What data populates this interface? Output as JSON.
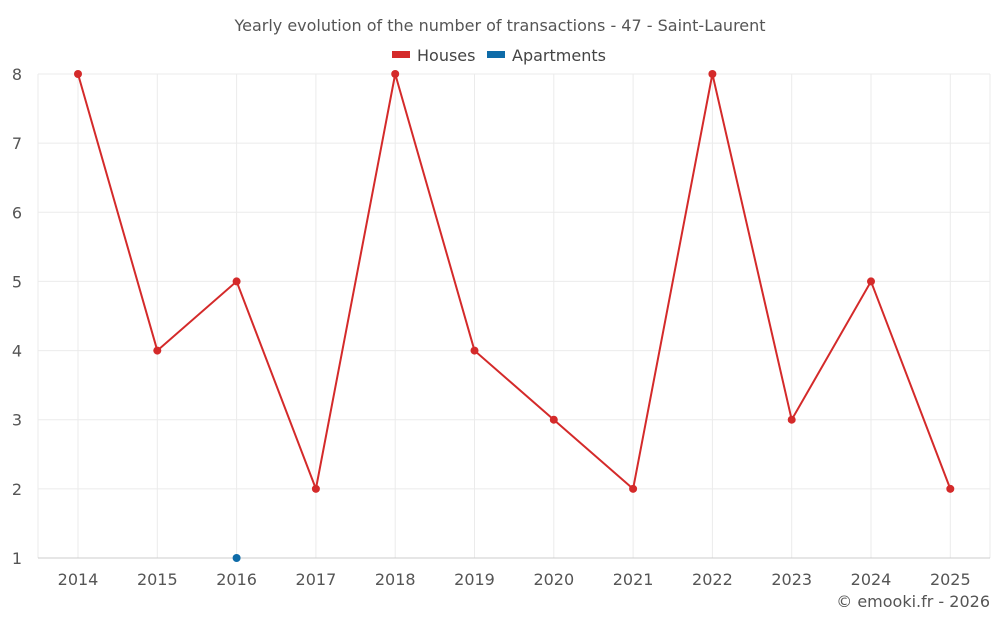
{
  "chart_data": {
    "type": "line",
    "title": "Yearly evolution of the number of transactions - 47 - Saint-Laurent",
    "categories": [
      "2014",
      "2015",
      "2016",
      "2017",
      "2018",
      "2019",
      "2020",
      "2021",
      "2022",
      "2023",
      "2024",
      "2025"
    ],
    "series": [
      {
        "name": "Houses",
        "color": "#d42a2a",
        "values": [
          8,
          4,
          5,
          2,
          8,
          4,
          3,
          2,
          8,
          3,
          5,
          2
        ]
      },
      {
        "name": "Apartments",
        "color": "#0e6ba8",
        "values": [
          null,
          null,
          1,
          null,
          null,
          null,
          null,
          null,
          null,
          null,
          null,
          null
        ]
      }
    ],
    "ylim": [
      1,
      8
    ],
    "yticks": [
      1,
      2,
      3,
      4,
      5,
      6,
      7,
      8
    ],
    "grid": true,
    "legend": "top-center"
  },
  "credit": "© emooki.fr - 2026"
}
